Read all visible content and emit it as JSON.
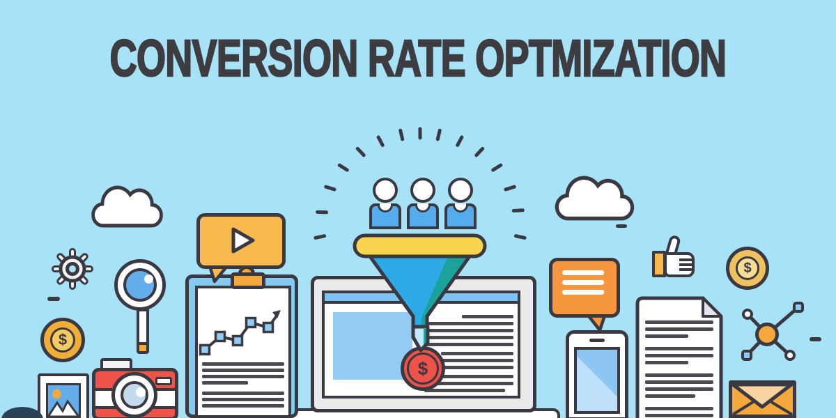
{
  "title": "CONVERSION RATE OPTMIZATION",
  "symbols": {
    "dollar": "$"
  },
  "colors": {
    "background": "#a8e2f6",
    "ink": "#3a3840",
    "title": "#3d3c41",
    "blue": "#2caae5",
    "person_blue": "#54acec",
    "panel_blue": "#84cbf3",
    "screen_blue": "#92ccf5",
    "lens_blue": "#64adeb",
    "pale_blue": "#c5daee",
    "teal": "#1aa29b",
    "yellow": "#f8d44e",
    "orange": "#f5a93c",
    "orange_deep": "#f6963f",
    "orange_soft": "#f8ba4e",
    "red": "#ed5348",
    "gold": "#f0ad38",
    "gold_light": "#f6cb63",
    "frame_gray": "#eaeaea",
    "line_gray": "#4a4950",
    "flap_light": "#f8d5a0"
  },
  "icons": [
    {
      "name": "cloud-left-icon"
    },
    {
      "name": "gear-icon"
    },
    {
      "name": "magnifier-icon"
    },
    {
      "name": "coin-left-icon"
    },
    {
      "name": "photo-icon"
    },
    {
      "name": "camera-icon"
    },
    {
      "name": "plant-icon"
    },
    {
      "name": "clipboard-chart-icon"
    },
    {
      "name": "video-bubble-icon"
    },
    {
      "name": "audience-icon"
    },
    {
      "name": "rays-burst-icon"
    },
    {
      "name": "funnel-icon"
    },
    {
      "name": "browser-monitor-icon"
    },
    {
      "name": "dollar-badge-icon"
    },
    {
      "name": "desk-icon"
    },
    {
      "name": "cloud-right-icon"
    },
    {
      "name": "chat-bubble-icon"
    },
    {
      "name": "smartphone-icon"
    },
    {
      "name": "thumbs-up-icon"
    },
    {
      "name": "coin-right-icon"
    },
    {
      "name": "document-icon"
    },
    {
      "name": "share-network-icon"
    },
    {
      "name": "envelope-icon"
    }
  ]
}
